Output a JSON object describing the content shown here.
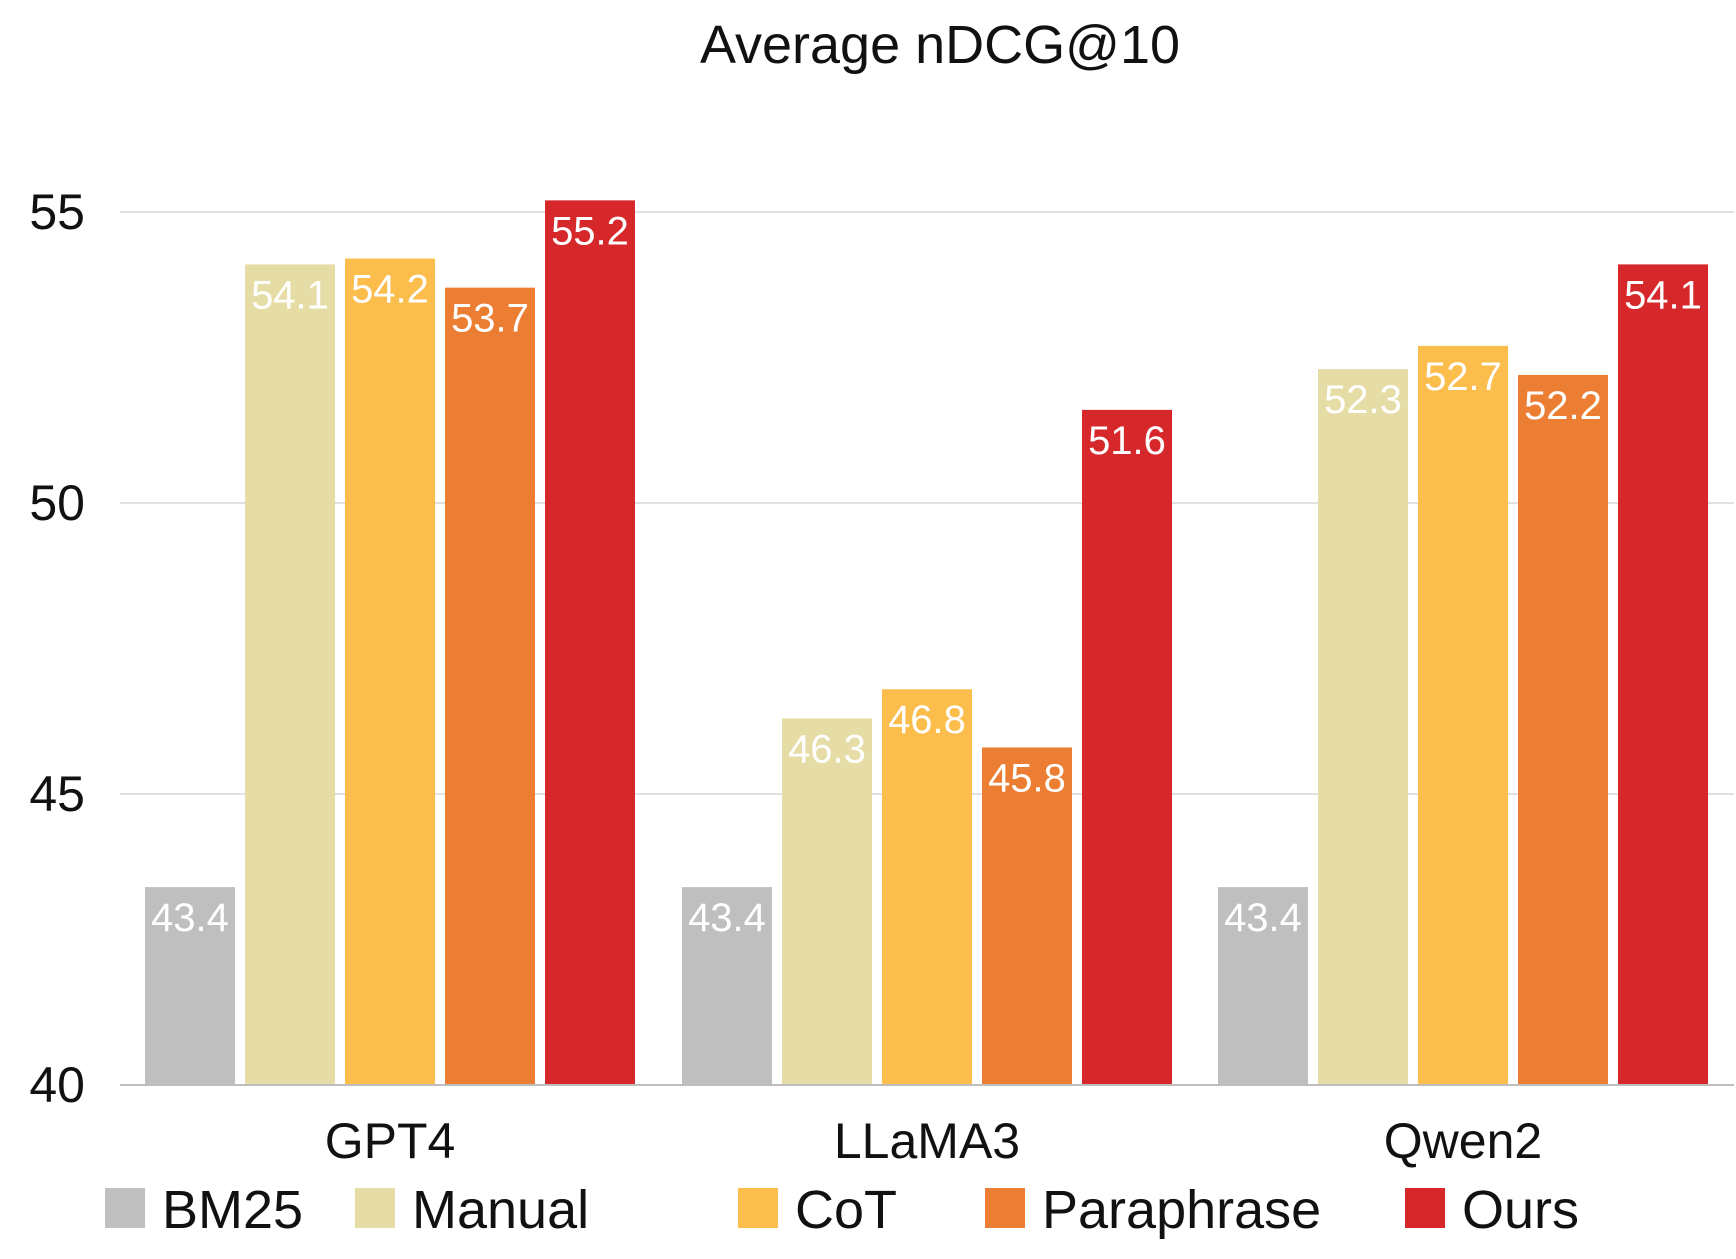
{
  "chart_data": {
    "type": "bar",
    "title": "Average nDCG@10",
    "xlabel": "",
    "ylabel": "",
    "categories": [
      "GPT4",
      "LLaMA3",
      "Qwen2"
    ],
    "ylim": [
      40,
      55.8
    ],
    "yticks": [
      40,
      45,
      50,
      55
    ],
    "grid": true,
    "legend_position": "bottom",
    "series": [
      {
        "name": "BM25",
        "color": "#bfbfbf",
        "values": [
          43.4,
          43.4,
          43.4
        ]
      },
      {
        "name": "Manual",
        "color": "#e6dca6",
        "values": [
          54.1,
          46.3,
          52.3
        ]
      },
      {
        "name": "CoT",
        "color": "#fbbd4b",
        "values": [
          54.2,
          46.8,
          52.7
        ]
      },
      {
        "name": "Paraphrase",
        "color": "#ec7e33",
        "values": [
          53.7,
          45.8,
          52.2
        ]
      },
      {
        "name": "Ours",
        "color": "#d6282b",
        "values": [
          55.2,
          51.6,
          54.1
        ]
      }
    ]
  }
}
